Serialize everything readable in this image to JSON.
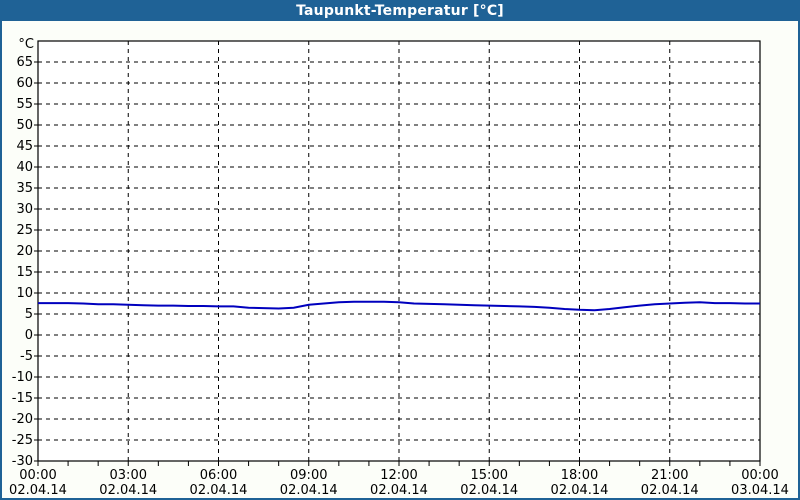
{
  "window": {
    "title": "Taupunkt-Temperatur [°C]"
  },
  "colors": {
    "header_bg": "#1F6296",
    "header_text": "#FFFFFF",
    "frame_border": "#1F6296",
    "page_bg": "#FCFEF9",
    "plot_bg": "#FFFFFF",
    "axis": "#000000",
    "grid": "#000000",
    "text": "#000000",
    "series": "#0000BE"
  },
  "chart_data": {
    "type": "line",
    "title": "Taupunkt-Temperatur [°C]",
    "ylabel": "°C",
    "xlabel": "",
    "ylim": [
      -30,
      70
    ],
    "yticks": [
      65,
      60,
      55,
      50,
      45,
      40,
      35,
      30,
      25,
      20,
      15,
      10,
      5,
      0,
      -5,
      -10,
      -15,
      -20,
      -25,
      -30
    ],
    "xlim_hours": [
      0,
      24
    ],
    "x_minor_tick_hours": 1,
    "grid": "dashed",
    "legend": "none",
    "xticks": [
      {
        "hour": 0,
        "time": "00:00",
        "date": "02.04.14"
      },
      {
        "hour": 3,
        "time": "03:00",
        "date": "02.04.14"
      },
      {
        "hour": 6,
        "time": "06:00",
        "date": "02.04.14"
      },
      {
        "hour": 9,
        "time": "09:00",
        "date": "02.04.14"
      },
      {
        "hour": 12,
        "time": "12:00",
        "date": "02.04.14"
      },
      {
        "hour": 15,
        "time": "15:00",
        "date": "02.04.14"
      },
      {
        "hour": 18,
        "time": "18:00",
        "date": "02.04.14"
      },
      {
        "hour": 21,
        "time": "21:00",
        "date": "02.04.14"
      },
      {
        "hour": 24,
        "time": "00:00",
        "date": "03.04.14"
      }
    ],
    "series": [
      {
        "name": "Taupunkt-Temperatur",
        "color": "#0000BE",
        "x_hours": [
          0,
          0.5,
          1,
          1.5,
          2,
          2.5,
          3,
          3.5,
          4,
          4.5,
          5,
          5.5,
          6,
          6.5,
          7,
          7.5,
          8,
          8.5,
          9,
          9.5,
          10,
          10.5,
          11,
          11.5,
          12,
          12.5,
          13,
          13.5,
          14,
          14.5,
          15,
          15.5,
          16,
          16.5,
          17,
          17.5,
          18,
          18.5,
          19,
          19.5,
          20,
          20.5,
          21,
          21.5,
          22,
          22.5,
          23,
          23.5,
          24
        ],
        "values": [
          7.6,
          7.6,
          7.6,
          7.5,
          7.3,
          7.3,
          7.2,
          7.1,
          7.0,
          7.0,
          6.9,
          6.9,
          6.8,
          6.8,
          6.5,
          6.4,
          6.3,
          6.5,
          7.2,
          7.5,
          7.8,
          7.9,
          7.9,
          7.9,
          7.8,
          7.5,
          7.4,
          7.3,
          7.2,
          7.1,
          7.0,
          6.9,
          6.8,
          6.7,
          6.5,
          6.2,
          6.0,
          5.9,
          6.2,
          6.6,
          7.0,
          7.3,
          7.5,
          7.7,
          7.8,
          7.6,
          7.6,
          7.5,
          7.5
        ]
      }
    ]
  }
}
